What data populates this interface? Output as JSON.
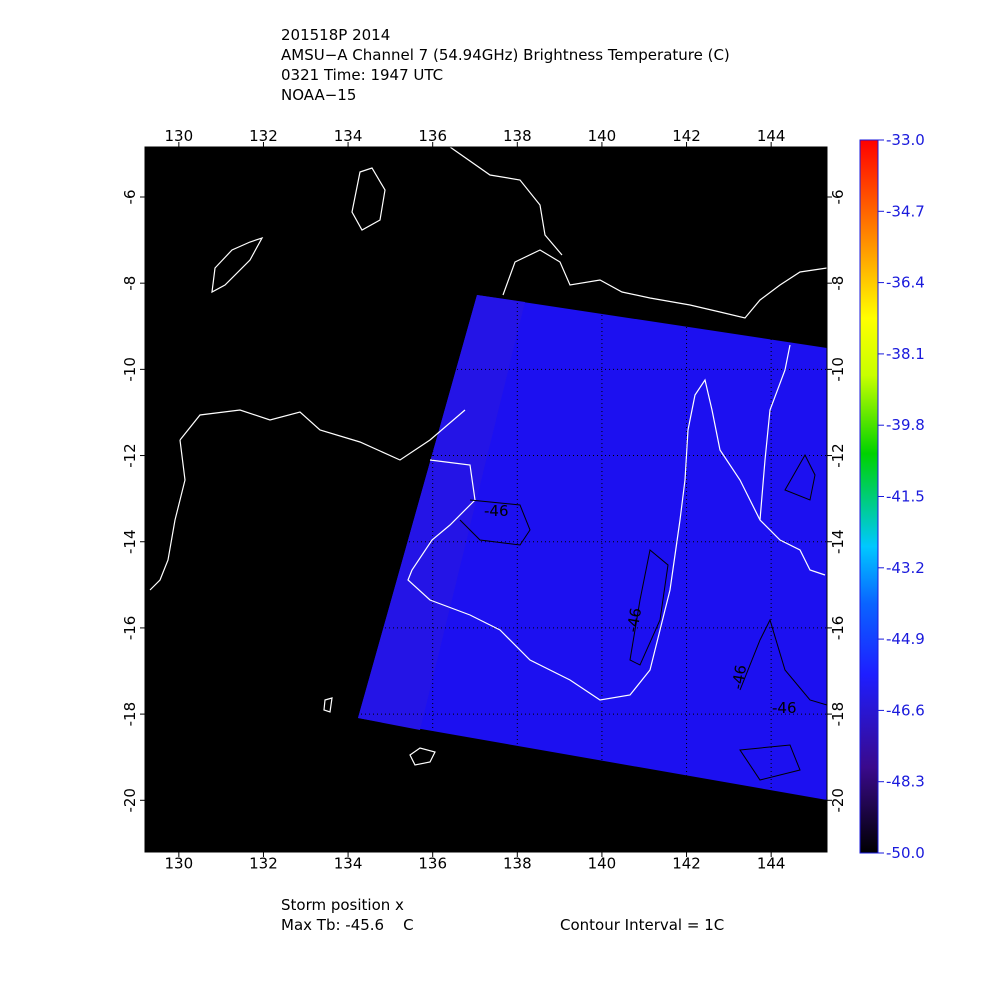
{
  "header": {
    "lines": [
      "201518P 2014",
      "AMSU−A Channel 7 (54.94GHz) Brightness Temperature (C)",
      "0321 Time: 1947 UTC",
      "NOAA−15"
    ]
  },
  "map": {
    "xlim": [
      129.2,
      145.32
    ],
    "ylim": [
      -21.2,
      -4.84
    ],
    "xticks": [
      130,
      132,
      134,
      136,
      138,
      140,
      142,
      144
    ],
    "yticks": [
      -6,
      -8,
      -10,
      -12,
      -14,
      -16,
      -18,
      -20
    ],
    "contour_labels": [
      "-46",
      "-46",
      "-46",
      "-46"
    ]
  },
  "colorbar": {
    "lim": [
      -50.0,
      -33.0
    ],
    "ticks": [
      {
        "value": -33.0,
        "label": "-33.0"
      },
      {
        "value": -34.7,
        "label": "-34.7"
      },
      {
        "value": -36.4,
        "label": "-36.4"
      },
      {
        "value": -38.1,
        "label": "-38.1"
      },
      {
        "value": -39.8,
        "label": "-39.8"
      },
      {
        "value": -41.5,
        "label": "-41.5"
      },
      {
        "value": -43.2,
        "label": "-43.2"
      },
      {
        "value": -44.9,
        "label": "-44.9"
      },
      {
        "value": -46.6,
        "label": "-46.6"
      },
      {
        "value": -48.3,
        "label": "-48.3"
      },
      {
        "value": -50.0,
        "label": "-50.0"
      }
    ]
  },
  "footer": {
    "storm": "Storm position x",
    "max_tb": "Max Tb: -45.6    C",
    "contour": "Contour Interval = 1C"
  }
}
